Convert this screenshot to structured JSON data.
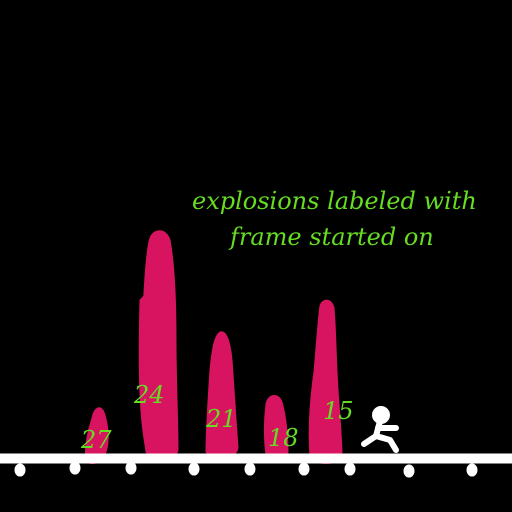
{
  "annotation": {
    "line1": "explosions labeled with",
    "line2": "frame started on"
  },
  "explosions": [
    {
      "frame": "27"
    },
    {
      "frame": "24"
    },
    {
      "frame": "21"
    },
    {
      "frame": "18"
    },
    {
      "frame": "15"
    }
  ],
  "colors": {
    "background": "#000000",
    "explosion": "#d81460",
    "label_text": "#66dd22",
    "ground": "#ffffff",
    "player": "#ffffff"
  }
}
